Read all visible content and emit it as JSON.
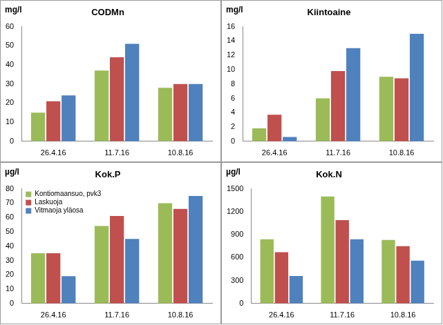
{
  "chart_data": [
    {
      "type": "bar",
      "title": "CODMn",
      "y_label": "mg/l",
      "categories": [
        "26.4.16",
        "11.7.16",
        "10.8.16"
      ],
      "series": [
        {
          "color": "#9bbb59",
          "values": [
            15,
            37,
            28
          ]
        },
        {
          "color": "#c0504d",
          "values": [
            21,
            44,
            30
          ]
        },
        {
          "color": "#4f81bd",
          "values": [
            24,
            51,
            30
          ]
        }
      ],
      "ylim": [
        0,
        60
      ],
      "yticks": [
        0,
        10,
        20,
        30,
        40,
        50,
        60
      ],
      "grid": false
    },
    {
      "type": "bar",
      "title": "Kiintoaine",
      "y_label": "mg/l",
      "categories": [
        "26.4.16",
        "11.7.16",
        "10.8.16"
      ],
      "series": [
        {
          "color": "#9bbb59",
          "values": [
            1.8,
            6.0,
            9.0
          ]
        },
        {
          "color": "#c0504d",
          "values": [
            3.7,
            9.8,
            8.8
          ]
        },
        {
          "color": "#4f81bd",
          "values": [
            0.6,
            13,
            15
          ]
        }
      ],
      "ylim": [
        0,
        16
      ],
      "yticks": [
        0,
        2,
        4,
        6,
        8,
        10,
        12,
        14,
        16
      ],
      "grid": false
    },
    {
      "type": "bar",
      "title": "Kok.P",
      "y_label": "µg/l",
      "categories": [
        "26.4.16",
        "11.7.16",
        "10.8.16"
      ],
      "series": [
        {
          "name": "Kontiomaansuo, pvk3",
          "color": "#9bbb59",
          "values": [
            35,
            54,
            70
          ]
        },
        {
          "name": "Laskuoja",
          "color": "#c0504d",
          "values": [
            35,
            61,
            66
          ]
        },
        {
          "name": "Vitmaoja yläosa",
          "color": "#4f81bd",
          "values": [
            19,
            45,
            75
          ]
        }
      ],
      "ylim": [
        0,
        80
      ],
      "yticks": [
        0,
        10,
        20,
        30,
        40,
        50,
        60,
        70,
        80
      ],
      "grid": false,
      "legend": "upper left"
    },
    {
      "type": "bar",
      "title": "Kok.N",
      "y_label": "µg/l",
      "categories": [
        "26.4.16",
        "11.7.16",
        "10.8.16"
      ],
      "series": [
        {
          "color": "#9bbb59",
          "values": [
            840,
            1400,
            830
          ]
        },
        {
          "color": "#c0504d",
          "values": [
            670,
            1090,
            750
          ]
        },
        {
          "color": "#4f81bd",
          "values": [
            360,
            840,
            560
          ]
        }
      ],
      "ylim": [
        0,
        1500
      ],
      "yticks": [
        0,
        300,
        600,
        900,
        1200,
        1500
      ],
      "grid": false
    }
  ]
}
